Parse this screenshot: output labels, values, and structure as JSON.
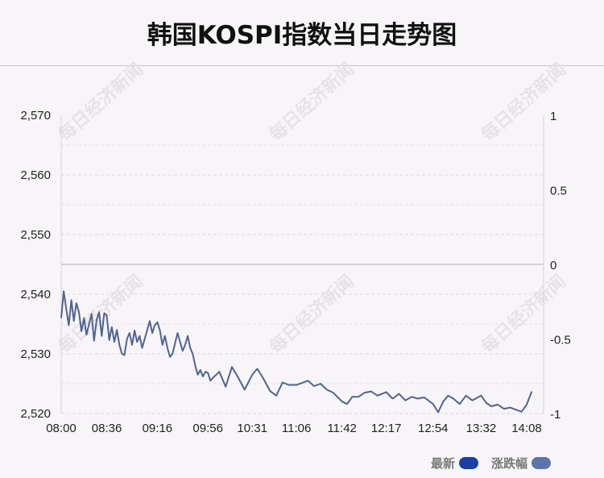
{
  "header": {
    "title": "韩国KOSPI指数当日走势图"
  },
  "watermark": "每日经济新闻",
  "legend": {
    "items": [
      {
        "label": "最新",
        "color": "#1b3fa8"
      },
      {
        "label": "涨跌幅",
        "color": "#5d74a8"
      }
    ]
  },
  "chart_data": {
    "type": "line",
    "y_left": {
      "ticks": [
        "2,570",
        "2,560",
        "2,550",
        "2,540",
        "2,530",
        "2,520"
      ],
      "range": [
        2520,
        2570
      ]
    },
    "y_right": {
      "ticks": [
        "1",
        "0.5",
        "0",
        "-0.5",
        "-1"
      ],
      "range": [
        -1,
        1
      ]
    },
    "x_ticks": [
      "08:00",
      "08:36",
      "09:16",
      "09:56",
      "10:31",
      "11:06",
      "11:42",
      "12:17",
      "12:54",
      "13:32",
      "14:08"
    ],
    "line_color": "#4f6493",
    "series": [
      {
        "x": [
          "08:00",
          "08:02",
          "08:04",
          "08:06",
          "08:08",
          "08:10",
          "08:12",
          "08:14",
          "08:16",
          "08:18",
          "08:20",
          "08:22",
          "08:24",
          "08:26",
          "08:28",
          "08:30",
          "08:32",
          "08:34",
          "08:36",
          "08:38",
          "08:40",
          "08:42",
          "08:44",
          "08:46",
          "08:48",
          "08:50",
          "08:52",
          "08:54",
          "08:56",
          "08:58",
          "09:00",
          "09:02",
          "09:04",
          "09:06",
          "09:08",
          "09:10",
          "09:12",
          "09:14",
          "09:16",
          "09:18",
          "09:20",
          "09:22",
          "09:24",
          "09:26",
          "09:28",
          "09:30",
          "09:32",
          "09:34",
          "09:36",
          "09:38",
          "09:40",
          "09:42",
          "09:44",
          "09:46",
          "09:48",
          "09:50",
          "09:52",
          "09:54",
          "09:56",
          "09:58",
          "10:00",
          "10:05",
          "10:10",
          "10:15",
          "10:20",
          "10:25",
          "10:31",
          "10:35",
          "10:40",
          "10:45",
          "10:50",
          "10:55",
          "11:00",
          "11:06",
          "11:10",
          "11:15",
          "11:20",
          "11:25",
          "11:30",
          "11:35",
          "11:42",
          "11:46",
          "11:50",
          "11:55",
          "12:00",
          "12:05",
          "12:10",
          "12:17",
          "12:22",
          "12:27",
          "12:32",
          "12:37",
          "12:42",
          "12:47",
          "12:54",
          "12:58",
          "13:02",
          "13:06",
          "13:10",
          "13:15",
          "13:20",
          "13:25",
          "13:32",
          "13:36",
          "13:40",
          "13:45",
          "13:50",
          "13:55",
          "14:00",
          "14:04",
          "14:08",
          "14:12"
        ],
        "values": [
          2536.0,
          2540.5,
          2537.5,
          2534.8,
          2539.0,
          2535.5,
          2538.5,
          2537.0,
          2533.8,
          2536.0,
          2533.2,
          2535.0,
          2536.7,
          2532.2,
          2535.7,
          2537.0,
          2533.0,
          2536.8,
          2536.5,
          2532.3,
          2534.5,
          2532.0,
          2534.0,
          2531.5,
          2530.0,
          2529.8,
          2532.5,
          2533.5,
          2531.5,
          2533.9,
          2532.0,
          2533.0,
          2531.0,
          2532.5,
          2534.0,
          2535.5,
          2533.5,
          2534.8,
          2535.3,
          2534.0,
          2531.5,
          2533.0,
          2531.0,
          2529.5,
          2530.0,
          2531.8,
          2533.5,
          2532.0,
          2530.5,
          2531.5,
          2533.0,
          2531.0,
          2530.0,
          2528.0,
          2526.5,
          2527.3,
          2526.2,
          2527.0,
          2526.8,
          2525.5,
          2526.0,
          2527.0,
          2524.5,
          2527.8,
          2526.0,
          2524.0,
          2526.5,
          2527.5,
          2525.8,
          2523.8,
          2523.0,
          2525.2,
          2524.8,
          2524.8,
          2525.1,
          2525.5,
          2524.6,
          2525.0,
          2524.0,
          2523.5,
          2522.0,
          2521.6,
          2522.8,
          2522.8,
          2523.5,
          2523.7,
          2523.0,
          2523.6,
          2522.5,
          2523.3,
          2522.2,
          2522.8,
          2522.5,
          2522.7,
          2521.6,
          2520.2,
          2522.0,
          2523.0,
          2522.5,
          2521.6,
          2523.0,
          2522.2,
          2523.0,
          2521.8,
          2521.2,
          2521.5,
          2520.8,
          2521.0,
          2520.6,
          2520.3,
          2521.5,
          2523.7
        ]
      }
    ]
  }
}
